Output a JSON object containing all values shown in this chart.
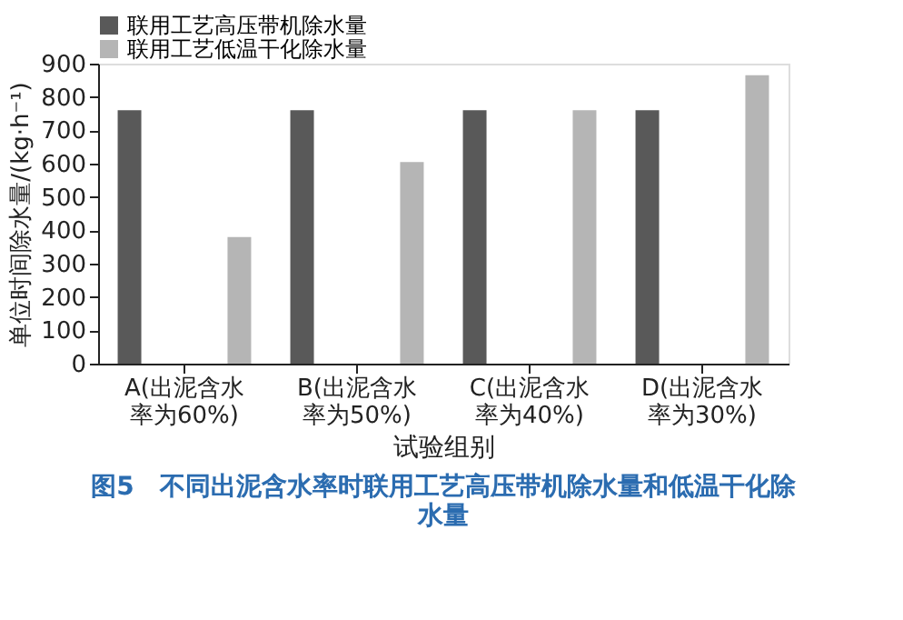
{
  "chart_data": {
    "type": "bar",
    "title": "图5　不同出泥含水率时联用工艺高压带机除水量和低温干化除水量",
    "xlabel": "试验组别",
    "ylabel": "单位时间除水量/(kg·h⁻¹)",
    "categories": [
      "A(出泥含水率为60%)",
      "B(出泥含水率为50%)",
      "C(出泥含水率为40%)",
      "D(出泥含水率为30%)"
    ],
    "series": [
      {
        "name": "联用工艺高压带机除水量",
        "color": "#595959",
        "values": [
          760,
          760,
          760,
          760
        ]
      },
      {
        "name": "联用工艺低温干化除水量",
        "color": "#b5b5b5",
        "values": [
          380,
          605,
          760,
          865
        ]
      }
    ],
    "ylim": [
      0,
      900
    ],
    "yticks": [
      0,
      100,
      200,
      300,
      400,
      500,
      600,
      700,
      800,
      900
    ],
    "grid": false,
    "legend": "top left"
  }
}
